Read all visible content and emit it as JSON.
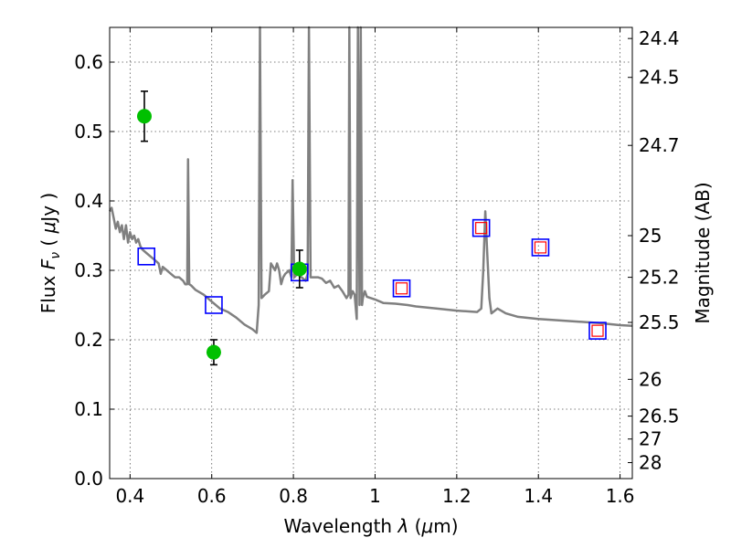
{
  "chart_data": {
    "type": "scatter",
    "xlabel": "Wavelength  λ (μm)",
    "ylabel": "Flux  F_ν  ( μJy )",
    "ylabel_right": "Magnitude (AB)",
    "xlim": [
      0.35,
      1.63
    ],
    "ylim": [
      0.0,
      0.65
    ],
    "grid": true,
    "x_ticks": [
      0.4,
      0.6,
      0.8,
      1.0,
      1.2,
      1.4,
      1.6
    ],
    "x_tick_labels": [
      "0.4",
      "0.6",
      "0.8",
      "1",
      "1.2",
      "1.4",
      "1.6"
    ],
    "y_ticks": [
      0.0,
      0.1,
      0.2,
      0.3,
      0.4,
      0.5,
      0.6
    ],
    "y_tick_labels": [
      "0.0",
      "0.1",
      "0.2",
      "0.3",
      "0.4",
      "0.5",
      "0.6"
    ],
    "right_ticks": [
      {
        "flux": 0.634,
        "label": "24.4"
      },
      {
        "flux": 0.578,
        "label": "24.5"
      },
      {
        "flux": 0.48,
        "label": "24.7"
      },
      {
        "flux": 0.35,
        "label": "25"
      },
      {
        "flux": 0.29,
        "label": "25.2"
      },
      {
        "flux": 0.225,
        "label": "25.5"
      },
      {
        "flux": 0.143,
        "label": "26"
      },
      {
        "flux": 0.09,
        "label": "26.5"
      },
      {
        "flux": 0.057,
        "label": "27"
      },
      {
        "flux": 0.023,
        "label": "28"
      }
    ],
    "colors": {
      "sed": "#808080",
      "observed": "#00c000",
      "model_square": "#0000ff",
      "detected_square": "#ff0000",
      "errorbar": "#000000",
      "grid": "#555555"
    },
    "series": [
      {
        "marker": "line",
        "points": [
          [
            0.35,
            0.385
          ],
          [
            0.355,
            0.39
          ],
          [
            0.36,
            0.375
          ],
          [
            0.365,
            0.36
          ],
          [
            0.37,
            0.37
          ],
          [
            0.375,
            0.355
          ],
          [
            0.38,
            0.365
          ],
          [
            0.385,
            0.345
          ],
          [
            0.39,
            0.365
          ],
          [
            0.395,
            0.34
          ],
          [
            0.4,
            0.355
          ],
          [
            0.405,
            0.345
          ],
          [
            0.41,
            0.35
          ],
          [
            0.415,
            0.34
          ],
          [
            0.42,
            0.345
          ],
          [
            0.425,
            0.335
          ],
          [
            0.43,
            0.33
          ],
          [
            0.44,
            0.325
          ],
          [
            0.45,
            0.32
          ],
          [
            0.46,
            0.315
          ],
          [
            0.47,
            0.31
          ],
          [
            0.475,
            0.295
          ],
          [
            0.48,
            0.305
          ],
          [
            0.49,
            0.3
          ],
          [
            0.5,
            0.295
          ],
          [
            0.51,
            0.29
          ],
          [
            0.52,
            0.29
          ],
          [
            0.53,
            0.285
          ],
          [
            0.535,
            0.28
          ],
          [
            0.54,
            0.28
          ],
          [
            0.542,
            0.46
          ],
          [
            0.545,
            0.28
          ],
          [
            0.55,
            0.278
          ],
          [
            0.56,
            0.272
          ],
          [
            0.58,
            0.265
          ],
          [
            0.6,
            0.255
          ],
          [
            0.62,
            0.245
          ],
          [
            0.64,
            0.24
          ],
          [
            0.66,
            0.232
          ],
          [
            0.68,
            0.222
          ],
          [
            0.7,
            0.215
          ],
          [
            0.71,
            0.21
          ],
          [
            0.715,
            0.25
          ],
          [
            0.718,
            0.65
          ],
          [
            0.722,
            0.26
          ],
          [
            0.73,
            0.265
          ],
          [
            0.74,
            0.27
          ],
          [
            0.745,
            0.31
          ],
          [
            0.75,
            0.305
          ],
          [
            0.755,
            0.3
          ],
          [
            0.76,
            0.31
          ],
          [
            0.765,
            0.3
          ],
          [
            0.77,
            0.28
          ],
          [
            0.775,
            0.29
          ],
          [
            0.78,
            0.295
          ],
          [
            0.79,
            0.3
          ],
          [
            0.795,
            0.29
          ],
          [
            0.798,
            0.43
          ],
          [
            0.802,
            0.29
          ],
          [
            0.81,
            0.295
          ],
          [
            0.82,
            0.29
          ],
          [
            0.83,
            0.285
          ],
          [
            0.835,
            0.295
          ],
          [
            0.838,
            0.65
          ],
          [
            0.842,
            0.29
          ],
          [
            0.85,
            0.29
          ],
          [
            0.86,
            0.29
          ],
          [
            0.87,
            0.288
          ],
          [
            0.88,
            0.282
          ],
          [
            0.89,
            0.285
          ],
          [
            0.9,
            0.275
          ],
          [
            0.91,
            0.278
          ],
          [
            0.92,
            0.27
          ],
          [
            0.93,
            0.26
          ],
          [
            0.935,
            0.265
          ],
          [
            0.937,
            0.65
          ],
          [
            0.94,
            0.26
          ],
          [
            0.945,
            0.27
          ],
          [
            0.95,
            0.265
          ],
          [
            0.955,
            0.23
          ],
          [
            0.958,
            0.65
          ],
          [
            0.962,
            0.25
          ],
          [
            0.965,
            0.65
          ],
          [
            0.968,
            0.25
          ],
          [
            0.97,
            0.26
          ],
          [
            0.975,
            0.27
          ],
          [
            0.98,
            0.262
          ],
          [
            0.99,
            0.26
          ],
          [
            1.0,
            0.258
          ],
          [
            1.02,
            0.253
          ],
          [
            1.05,
            0.252
          ],
          [
            1.08,
            0.25
          ],
          [
            1.1,
            0.248
          ],
          [
            1.15,
            0.245
          ],
          [
            1.2,
            0.242
          ],
          [
            1.25,
            0.24
          ],
          [
            1.26,
            0.245
          ],
          [
            1.265,
            0.3
          ],
          [
            1.27,
            0.385
          ],
          [
            1.275,
            0.32
          ],
          [
            1.28,
            0.26
          ],
          [
            1.285,
            0.238
          ],
          [
            1.3,
            0.245
          ],
          [
            1.32,
            0.238
          ],
          [
            1.35,
            0.233
          ],
          [
            1.4,
            0.23
          ],
          [
            1.45,
            0.228
          ],
          [
            1.5,
            0.226
          ],
          [
            1.55,
            0.224
          ],
          [
            1.6,
            0.221
          ],
          [
            1.63,
            0.22
          ]
        ]
      },
      {
        "marker": "square",
        "points": [
          [
            0.44,
            0.32
          ],
          [
            0.605,
            0.25
          ],
          [
            0.815,
            0.297
          ],
          [
            1.065,
            0.274
          ],
          [
            1.26,
            0.361
          ],
          [
            1.405,
            0.333
          ],
          [
            1.545,
            0.213
          ]
        ]
      },
      {
        "marker": "square",
        "points": [
          [
            1.065,
            0.274
          ],
          [
            1.26,
            0.361
          ],
          [
            1.405,
            0.333
          ],
          [
            1.545,
            0.213
          ]
        ]
      },
      {
        "marker": "circle_errorbar",
        "points": [
          {
            "x": 0.435,
            "y": 0.522,
            "err": 0.036
          },
          {
            "x": 0.605,
            "y": 0.182,
            "err": 0.018
          },
          {
            "x": 0.815,
            "y": 0.302,
            "err": 0.027
          }
        ]
      }
    ]
  }
}
